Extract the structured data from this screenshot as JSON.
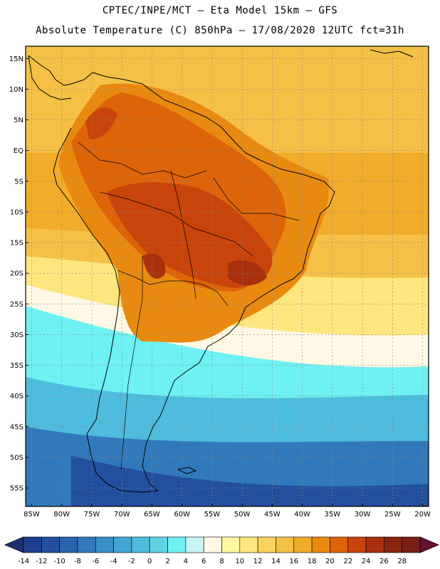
{
  "header": {
    "line1": "CPTEC/INPE/MCT –  Eta Model 15km – GFS",
    "line2": "Absolute Temperature (C) 850hPa – 17/08/2020 12UTC fct=31h"
  },
  "map": {
    "lon_range": [
      -86,
      -19
    ],
    "lat_range": [
      -58,
      17
    ],
    "lat_ticks": [
      {
        "value": 15,
        "label": "15N"
      },
      {
        "value": 10,
        "label": "10N"
      },
      {
        "value": 5,
        "label": "5N"
      },
      {
        "value": 0,
        "label": "EQ"
      },
      {
        "value": -5,
        "label": "5S"
      },
      {
        "value": -10,
        "label": "10S"
      },
      {
        "value": -15,
        "label": "15S"
      },
      {
        "value": -20,
        "label": "20S"
      },
      {
        "value": -25,
        "label": "25S"
      },
      {
        "value": -30,
        "label": "30S"
      },
      {
        "value": -35,
        "label": "35S"
      },
      {
        "value": -40,
        "label": "40S"
      },
      {
        "value": -45,
        "label": "45S"
      },
      {
        "value": -50,
        "label": "50S"
      },
      {
        "value": -55,
        "label": "55S"
      }
    ],
    "lon_ticks": [
      {
        "value": -85,
        "label": "85W"
      },
      {
        "value": -80,
        "label": "80W"
      },
      {
        "value": -75,
        "label": "75W"
      },
      {
        "value": -70,
        "label": "70W"
      },
      {
        "value": -65,
        "label": "65W"
      },
      {
        "value": -60,
        "label": "60W"
      },
      {
        "value": -55,
        "label": "55W"
      },
      {
        "value": -50,
        "label": "50W"
      },
      {
        "value": -45,
        "label": "45W"
      },
      {
        "value": -40,
        "label": "40W"
      },
      {
        "value": -35,
        "label": "35W"
      },
      {
        "value": -30,
        "label": "30W"
      },
      {
        "value": -25,
        "label": "25W"
      },
      {
        "value": -20,
        "label": "20W"
      }
    ],
    "colorbar": [
      {
        "label": "-14",
        "color": "#1c3f8f"
      },
      {
        "label": "-12",
        "color": "#22509f"
      },
      {
        "label": "-10",
        "color": "#2a63ad"
      },
      {
        "label": "-8",
        "color": "#3279bb"
      },
      {
        "label": "-6",
        "color": "#3a8fc8"
      },
      {
        "label": "-4",
        "color": "#42a6d2"
      },
      {
        "label": "-2",
        "color": "#4ebcdc"
      },
      {
        "label": "0",
        "color": "#5fd3e6"
      },
      {
        "label": "2",
        "color": "#6ff0f2"
      },
      {
        "label": "4",
        "color": "#c8f4f8"
      },
      {
        "label": "6",
        "color": "#fff8e4"
      },
      {
        "label": "8",
        "color": "#fff6a0"
      },
      {
        "label": "10",
        "color": "#fde67e"
      },
      {
        "label": "12",
        "color": "#fad35f"
      },
      {
        "label": "14",
        "color": "#f5c046"
      },
      {
        "label": "16",
        "color": "#f1ac2a"
      },
      {
        "label": "18",
        "color": "#e98a10"
      },
      {
        "label": "20",
        "color": "#dd6408"
      },
      {
        "label": "22",
        "color": "#c9440a"
      },
      {
        "label": "24",
        "color": "#a8300c"
      },
      {
        "label": "26",
        "color": "#8a240e"
      },
      {
        "label": "28",
        "color": "#7a1e18"
      }
    ],
    "low_arrow_color": "#1a2f6e",
    "high_arrow_color": "#6a1030"
  }
}
